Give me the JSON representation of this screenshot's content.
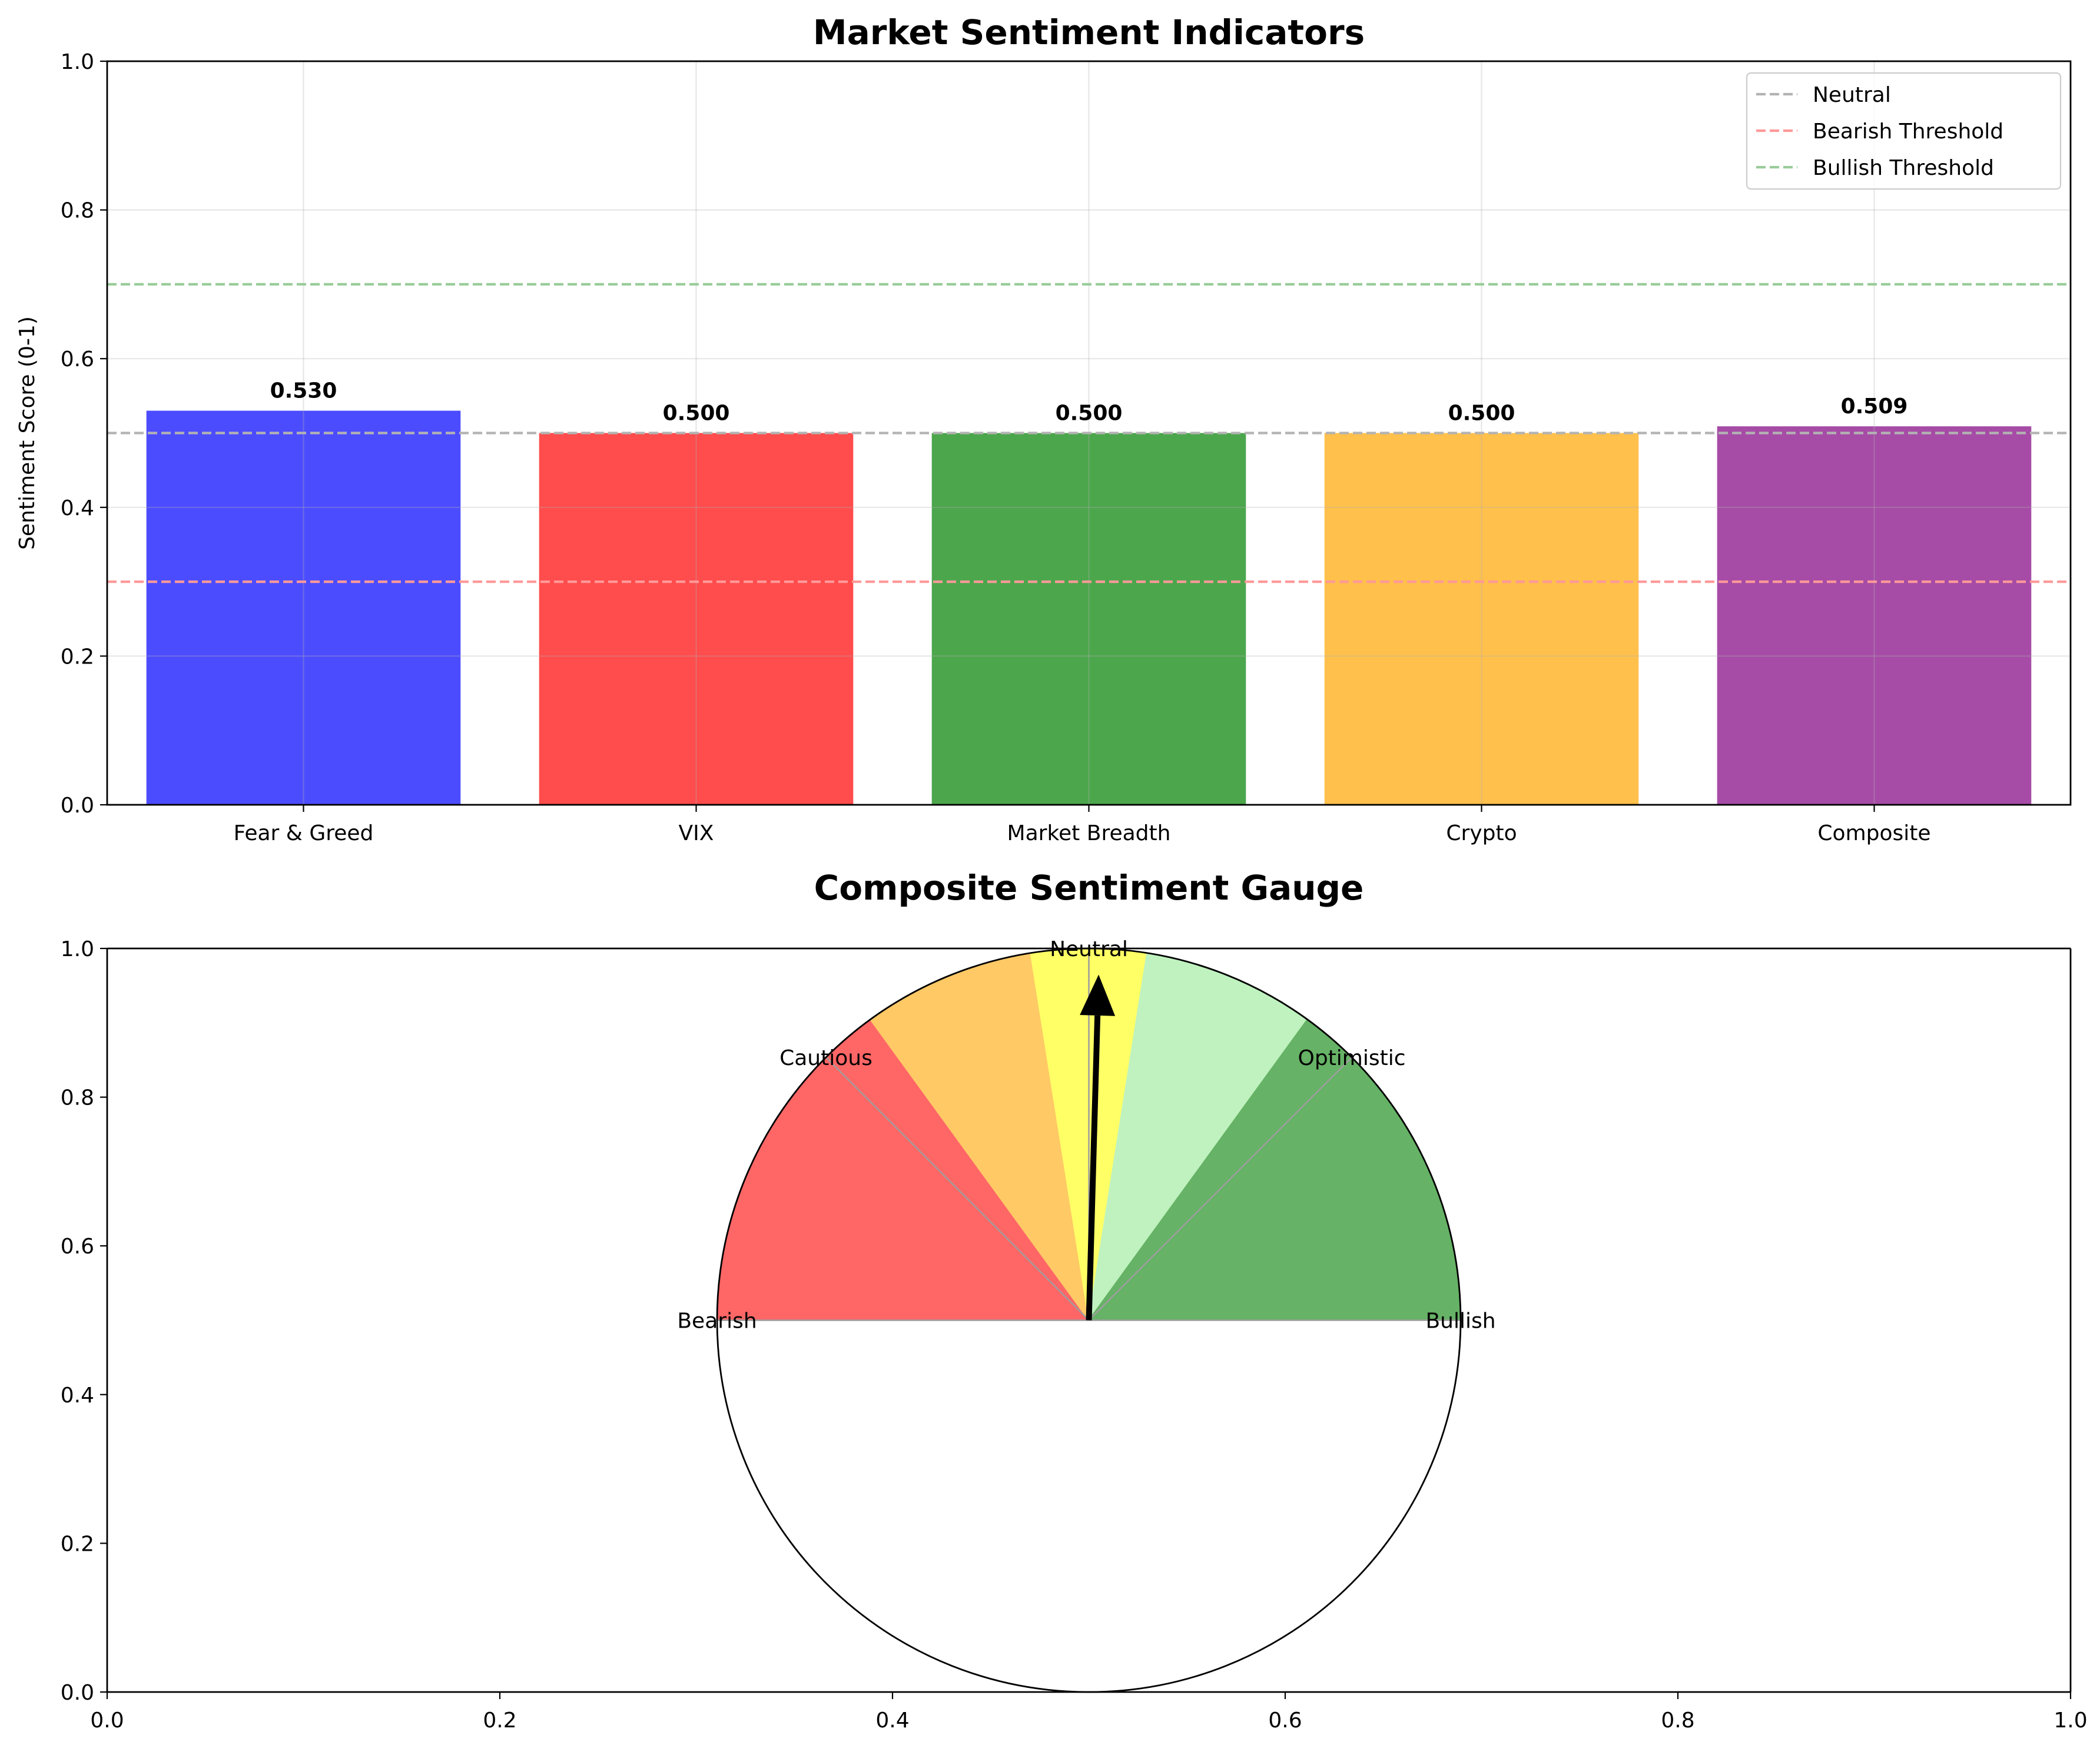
{
  "chart_data": [
    {
      "type": "bar",
      "title": "Market Sentiment Indicators",
      "xlabel": "",
      "ylabel": "Sentiment Score (0-1)",
      "ylim": [
        0,
        1
      ],
      "yticks": [
        "0.0",
        "0.2",
        "0.4",
        "0.6",
        "0.8",
        "1.0"
      ],
      "grid": true,
      "categories": [
        "Fear & Greed",
        "VIX",
        "Market Breadth",
        "Crypto",
        "Composite"
      ],
      "values": [
        0.53,
        0.5,
        0.5,
        0.5,
        0.509
      ],
      "value_labels": [
        "0.530",
        "0.500",
        "0.500",
        "0.500",
        "0.509"
      ],
      "colors": [
        "#4c4cff",
        "#ff4c4c",
        "#4ca64c",
        "#ffc04c",
        "#a64ca6"
      ],
      "reference_lines": [
        {
          "name": "Neutral",
          "value": 0.5,
          "color": "#b3b3b3"
        },
        {
          "name": "Bearish Threshold",
          "value": 0.3,
          "color": "#ff9999"
        },
        {
          "name": "Bullish Threshold",
          "value": 0.7,
          "color": "#99cc99"
        }
      ],
      "legend_position": "top-right"
    },
    {
      "type": "gauge",
      "title": "Composite Sentiment Gauge",
      "xlim": [
        0,
        1
      ],
      "ylim": [
        0,
        1
      ],
      "xticks": [
        "0.0",
        "0.2",
        "0.4",
        "0.6",
        "0.8",
        "1.0"
      ],
      "yticks": [
        "0.0",
        "0.2",
        "0.4",
        "0.6",
        "0.8",
        "1.0"
      ],
      "value": 0.509,
      "zones": [
        {
          "from": 0.0,
          "to": 0.3,
          "color": "#ff6666"
        },
        {
          "from": 0.3,
          "to": 0.45,
          "color": "#ffc966"
        },
        {
          "from": 0.45,
          "to": 0.55,
          "color": "#ffff66"
        },
        {
          "from": 0.55,
          "to": 0.7,
          "color": "#bff2bf"
        },
        {
          "from": 0.7,
          "to": 1.0,
          "color": "#66b266"
        }
      ],
      "labels": [
        "Bearish",
        "Cautious",
        "Neutral",
        "Optimistic",
        "Bullish"
      ],
      "label_positions": [
        0.0,
        0.25,
        0.5,
        0.75,
        1.0
      ]
    }
  ]
}
